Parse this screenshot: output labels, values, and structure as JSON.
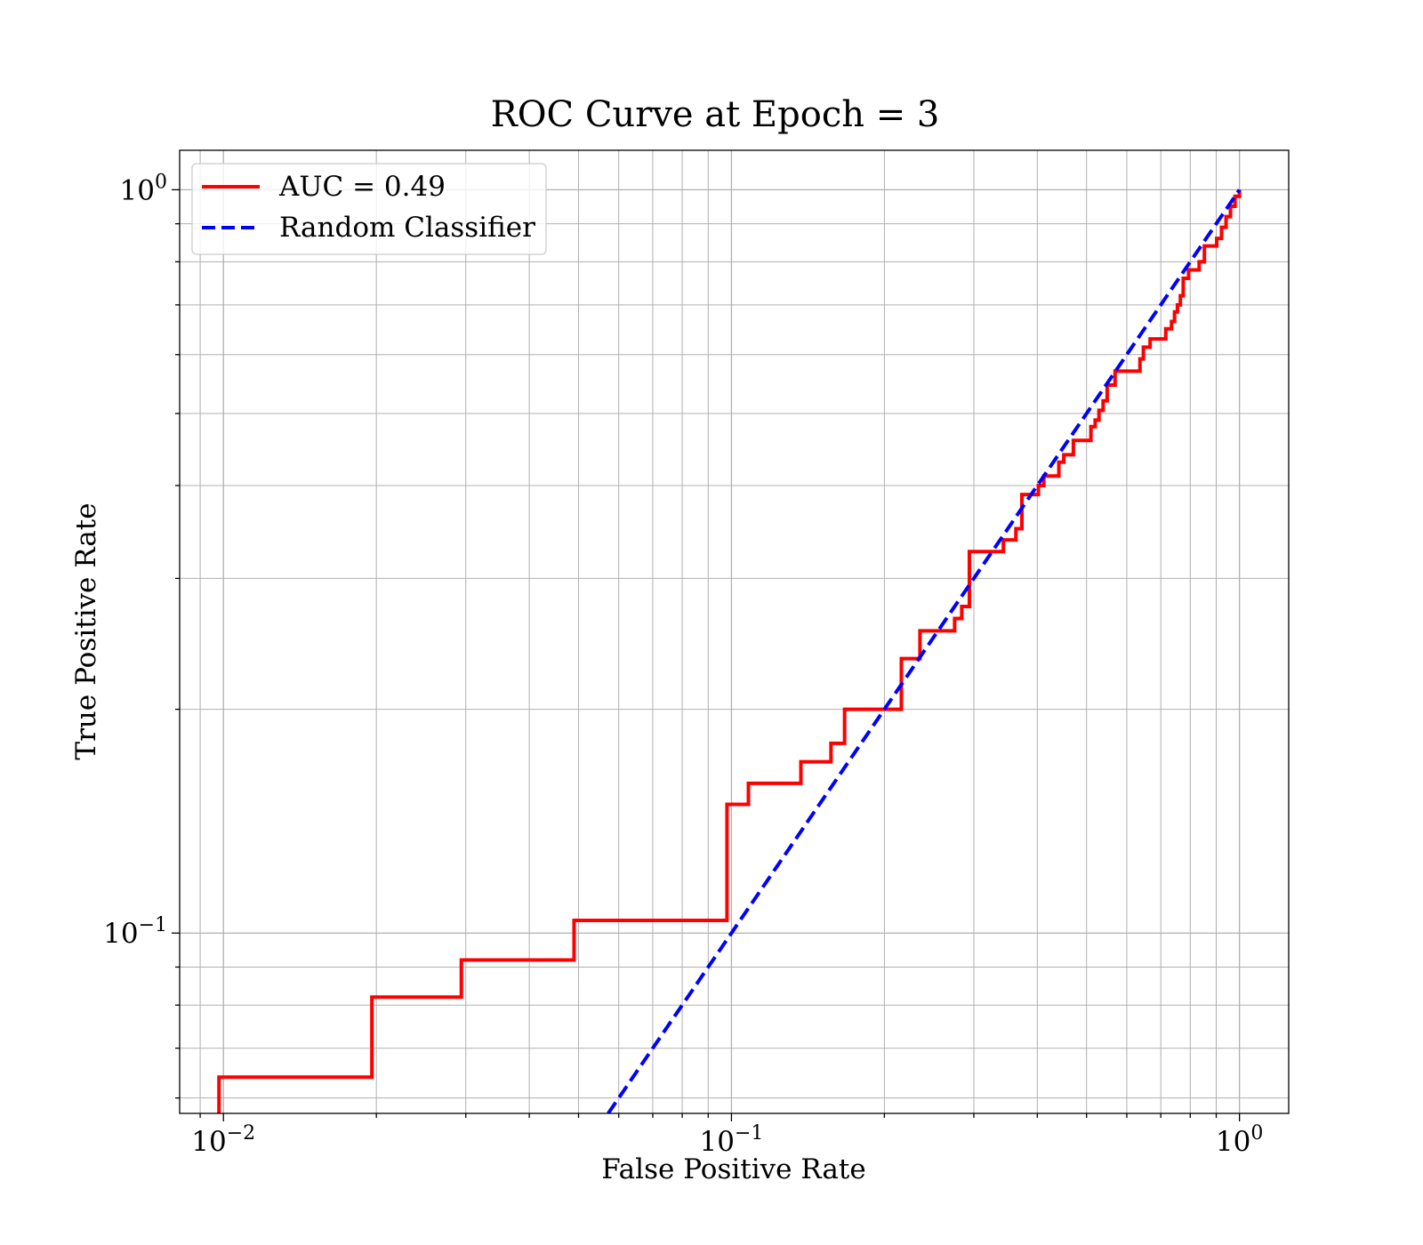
{
  "chart_data": {
    "type": "line",
    "title": "ROC Curve at Epoch = 3",
    "xlabel": "False Positive Rate",
    "ylabel": "True Positive Rate",
    "xscale": "log",
    "yscale": "log",
    "xlim": [
      0.0082,
      1.25
    ],
    "ylim": [
      0.0572,
      1.13
    ],
    "grid": "major and minor",
    "legend_position": "top-left",
    "x_ticks": [
      {
        "value": 0.01,
        "base": "10",
        "exp": "−2"
      },
      {
        "value": 0.1,
        "base": "10",
        "exp": "−1"
      },
      {
        "value": 1,
        "base": "10",
        "exp": "0"
      }
    ],
    "y_ticks": [
      {
        "value": 0.1,
        "base": "10",
        "exp": "−1"
      },
      {
        "value": 1,
        "base": "10",
        "exp": "0"
      }
    ],
    "series": [
      {
        "name": "AUC = 0.49",
        "style": "solid",
        "color": "#ff0000",
        "x": [
          0.0098,
          0.0098,
          0.0196,
          0.0196,
          0.0294,
          0.0294,
          0.049,
          0.049,
          0.098,
          0.098,
          0.108,
          0.108,
          0.137,
          0.137,
          0.157,
          0.157,
          0.167,
          0.167,
          0.216,
          0.216,
          0.235,
          0.235,
          0.275,
          0.275,
          0.284,
          0.284,
          0.294,
          0.294,
          0.343,
          0.343,
          0.363,
          0.363,
          0.373,
          0.373,
          0.402,
          0.402,
          0.412,
          0.412,
          0.441,
          0.441,
          0.451,
          0.451,
          0.471,
          0.471,
          0.51,
          0.51,
          0.52,
          0.52,
          0.529,
          0.529,
          0.539,
          0.539,
          0.549,
          0.549,
          0.569,
          0.569,
          0.637,
          0.637,
          0.647,
          0.647,
          0.667,
          0.667,
          0.716,
          0.716,
          0.735,
          0.735,
          0.745,
          0.745,
          0.755,
          0.755,
          0.765,
          0.765,
          0.775,
          0.775,
          0.794,
          0.794,
          0.833,
          0.833,
          0.853,
          0.853,
          0.902,
          0.902,
          0.922,
          0.922,
          0.941,
          0.941,
          0.96,
          0.96,
          0.98,
          0.98,
          1.0,
          1.0
        ],
        "y": [
          0.057,
          0.064,
          0.064,
          0.082,
          0.082,
          0.092,
          0.092,
          0.104,
          0.104,
          0.149,
          0.149,
          0.159,
          0.159,
          0.17,
          0.17,
          0.18,
          0.18,
          0.2,
          0.2,
          0.234,
          0.234,
          0.255,
          0.255,
          0.265,
          0.265,
          0.275,
          0.275,
          0.326,
          0.326,
          0.338,
          0.338,
          0.35,
          0.35,
          0.389,
          0.389,
          0.4,
          0.4,
          0.412,
          0.412,
          0.43,
          0.43,
          0.44,
          0.44,
          0.46,
          0.46,
          0.48,
          0.48,
          0.49,
          0.49,
          0.505,
          0.505,
          0.52,
          0.52,
          0.546,
          0.546,
          0.57,
          0.57,
          0.592,
          0.592,
          0.614,
          0.614,
          0.63,
          0.63,
          0.65,
          0.65,
          0.665,
          0.665,
          0.685,
          0.685,
          0.7,
          0.7,
          0.72,
          0.72,
          0.76,
          0.76,
          0.78,
          0.78,
          0.8,
          0.8,
          0.84,
          0.84,
          0.86,
          0.86,
          0.89,
          0.89,
          0.92,
          0.92,
          0.95,
          0.95,
          0.98,
          0.98,
          1.0
        ]
      },
      {
        "name": "Random Classifier",
        "style": "dashed",
        "color": "#0000ff",
        "x": [
          0.0572,
          1.0
        ],
        "y": [
          0.0572,
          1.0
        ]
      }
    ]
  }
}
